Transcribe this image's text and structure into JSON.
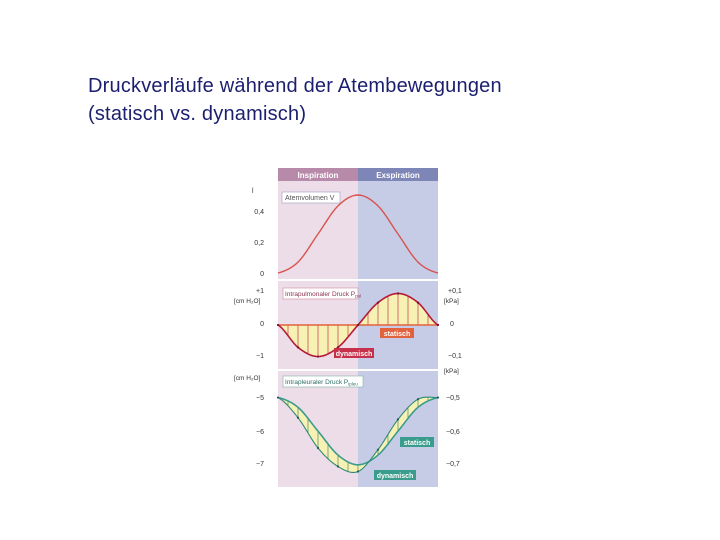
{
  "slide": {
    "title_line1": "Druckverläufe während der Atembewegungen",
    "title_line2": "(statisch vs. dynamisch)"
  },
  "colors": {
    "inspiration_bg": "#eddde8",
    "expiration_bg": "#c6cce6",
    "header_inspiration": "#b88aa9",
    "header_expiration": "#7d86b6",
    "volume_curve": "#d9534f",
    "pressure_dynamic": "#b7193a",
    "pressure_static": "#e2623e",
    "pleural_dynamic": "#2f8a7a",
    "fill_yellow": "#f7f2b4",
    "label_red": "#c7304a",
    "label_teal": "#3a9c8c"
  },
  "chart_data": [
    {
      "type": "line",
      "panel": "volume",
      "phases": [
        "Inspiration",
        "Exspiration"
      ],
      "title": "Atemvolumen V",
      "ylabel": "l",
      "yticks": [
        "0",
        "0,2",
        "0,4"
      ],
      "ylim": [
        0,
        0.5
      ],
      "x": [
        0,
        0.125,
        0.25,
        0.375,
        0.5,
        0.625,
        0.75,
        0.875,
        1.0
      ],
      "series": [
        {
          "values": [
            0,
            0.07,
            0.25,
            0.43,
            0.5,
            0.43,
            0.25,
            0.07,
            0
          ]
        }
      ]
    },
    {
      "type": "area",
      "panel": "intrapulmonary",
      "title": "Intrapulmonaler Druck P",
      "title_sub": "pul",
      "ylabel_left": "[cm H₂O]",
      "ylabel_right": "[kPa]",
      "yticks_left": [
        "+1",
        "0",
        "−1"
      ],
      "yticks_right": [
        "+0,1",
        "0",
        "−0,1"
      ],
      "ylim": [
        -1.3,
        1.3
      ],
      "x": [
        0,
        0.125,
        0.25,
        0.375,
        0.5,
        0.625,
        0.75,
        0.875,
        1.0
      ],
      "series": [
        {
          "name": "statisch",
          "values": [
            0,
            0,
            0,
            0,
            0,
            0,
            0,
            0,
            0
          ]
        },
        {
          "name": "dynamisch",
          "values": [
            0,
            -0.71,
            -1.0,
            -0.71,
            0,
            0.71,
            1.0,
            0.71,
            0
          ]
        }
      ],
      "labels": [
        "statisch",
        "dynamisch"
      ]
    },
    {
      "type": "area",
      "panel": "intrapleural",
      "title": "Intrapleuraler Druck P",
      "title_sub": "ipleu",
      "ylabel_left": "[cm H₂O]",
      "ylabel_right": "[kPa]",
      "yticks_left": [
        "−5",
        "−6",
        "−7"
      ],
      "yticks_right": [
        "−0,5",
        "−0,6",
        "−0,7"
      ],
      "ylim": [
        -7.6,
        -4.3
      ],
      "x": [
        0,
        0.125,
        0.25,
        0.375,
        0.5,
        0.625,
        0.75,
        0.875,
        1.0
      ],
      "series": [
        {
          "name": "statisch",
          "values": [
            -5.0,
            -5.29,
            -6.0,
            -6.71,
            -7.0,
            -6.71,
            -6.0,
            -5.29,
            -5.0
          ]
        },
        {
          "name": "dynamisch",
          "values": [
            -5.0,
            -5.6,
            -6.5,
            -7.05,
            -7.2,
            -6.55,
            -5.65,
            -5.05,
            -5.0
          ]
        }
      ],
      "labels": [
        "statisch",
        "dynamisch"
      ]
    }
  ]
}
